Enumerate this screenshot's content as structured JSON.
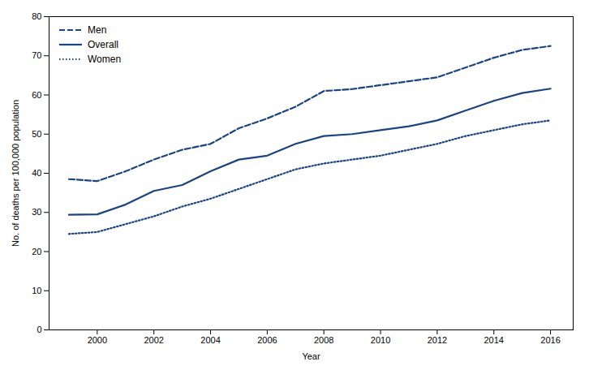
{
  "chart_data": {
    "type": "line",
    "xlabel": "Year",
    "ylabel": "No. of deaths per 100,000 population",
    "x": [
      1999,
      2000,
      2001,
      2002,
      2003,
      2004,
      2005,
      2006,
      2007,
      2008,
      2009,
      2010,
      2011,
      2012,
      2013,
      2014,
      2015,
      2016
    ],
    "series": [
      {
        "name": "Men",
        "color": "#1A4480",
        "line_style": "dashed",
        "values": [
          38.5,
          38.0,
          40.5,
          43.5,
          46.0,
          47.5,
          51.5,
          54.0,
          57.0,
          61.0,
          61.5,
          62.5,
          63.5,
          64.5,
          67.0,
          69.5,
          71.5,
          72.5
        ]
      },
      {
        "name": "Overall",
        "color": "#1A4480",
        "line_style": "solid",
        "values": [
          29.4,
          29.5,
          32.0,
          35.5,
          37.0,
          40.5,
          43.5,
          44.5,
          47.5,
          49.5,
          50.0,
          51.0,
          52.0,
          53.5,
          56.0,
          58.5,
          60.5,
          61.6
        ]
      },
      {
        "name": "Women",
        "color": "#1A4480",
        "line_style": "dotted",
        "values": [
          24.5,
          25.0,
          27.0,
          29.0,
          31.5,
          33.5,
          36.0,
          38.5,
          41.0,
          42.5,
          43.5,
          44.5,
          46.0,
          47.5,
          49.5,
          51.0,
          52.5,
          53.5
        ]
      }
    ],
    "xlim": [
      1998.3,
      2016.8
    ],
    "xticks": [
      2000,
      2002,
      2004,
      2006,
      2008,
      2010,
      2012,
      2014,
      2016
    ],
    "ylim": [
      0,
      80
    ],
    "yticks": [
      0,
      10,
      20,
      30,
      40,
      50,
      60,
      70,
      80
    ],
    "grid": false,
    "legend": "upper left"
  }
}
